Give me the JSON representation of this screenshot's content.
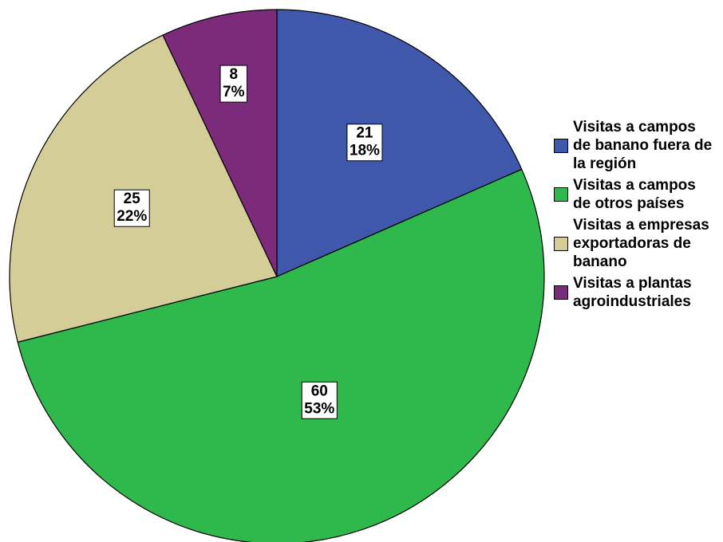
{
  "chart_data": {
    "type": "pie",
    "categories": [
      "Visitas a campos de banano fuera de la región",
      "Visitas a campos de otros países",
      "Visitas a empresas exportadoras de banano",
      "Visitas a plantas agroindustriales"
    ],
    "values": [
      21,
      60,
      25,
      8
    ],
    "percent_labels": [
      "18%",
      "53%",
      "22%",
      "7%"
    ],
    "colors": [
      "#3f58ab",
      "#2fb84b",
      "#d4cd98",
      "#7c2b7b"
    ],
    "legend": "right"
  }
}
